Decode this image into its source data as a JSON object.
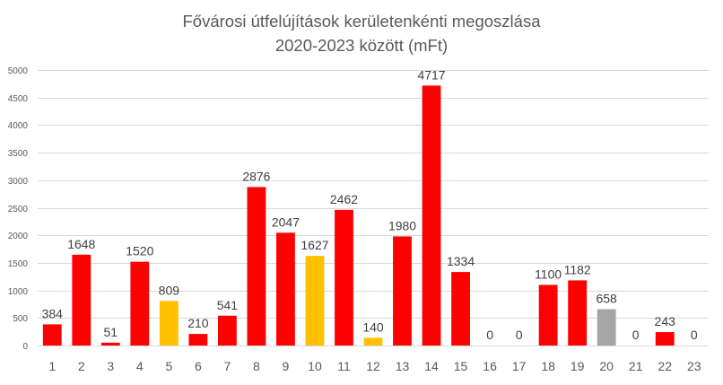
{
  "chart_data": {
    "type": "bar",
    "title": [
      "Fővárosi útfelújítások kerületenkénti megoszlása",
      "2020-2023 között (mFt)"
    ],
    "xlabel": "",
    "ylabel": "",
    "ylim": [
      0,
      5000
    ],
    "yticks": [
      0,
      500,
      1000,
      1500,
      2000,
      2500,
      3000,
      3500,
      4000,
      4500,
      5000
    ],
    "grid": true,
    "legend": "none",
    "categories": [
      "1",
      "2",
      "3",
      "4",
      "5",
      "6",
      "7",
      "8",
      "9",
      "10",
      "11",
      "12",
      "13",
      "14",
      "15",
      "16",
      "17",
      "18",
      "19",
      "20",
      "21",
      "22",
      "23"
    ],
    "values": [
      384,
      1648,
      51,
      1520,
      809,
      210,
      541,
      2876,
      2047,
      1627,
      2462,
      140,
      1980,
      4717,
      1334,
      0,
      0,
      1100,
      1182,
      658,
      0,
      243,
      0
    ],
    "data_labels": [
      "384",
      "1648",
      "51",
      "1520",
      "809",
      "210",
      "541",
      "2876",
      "2047",
      "1627",
      "2462",
      "140",
      "1980",
      "4717",
      "1334",
      "0",
      "0",
      "1100",
      "1182",
      "658",
      "0",
      "243",
      "0"
    ],
    "colors": [
      "#ff0000",
      "#ff0000",
      "#ff0000",
      "#ff0000",
      "#ffc000",
      "#ff0000",
      "#ff0000",
      "#ff0000",
      "#ff0000",
      "#ffc000",
      "#ff0000",
      "#ffc000",
      "#ff0000",
      "#ff0000",
      "#ff0000",
      "#ff0000",
      "#ff0000",
      "#ff0000",
      "#ff0000",
      "#a5a5a5",
      "#ff0000",
      "#ff0000",
      "#ff0000"
    ]
  }
}
